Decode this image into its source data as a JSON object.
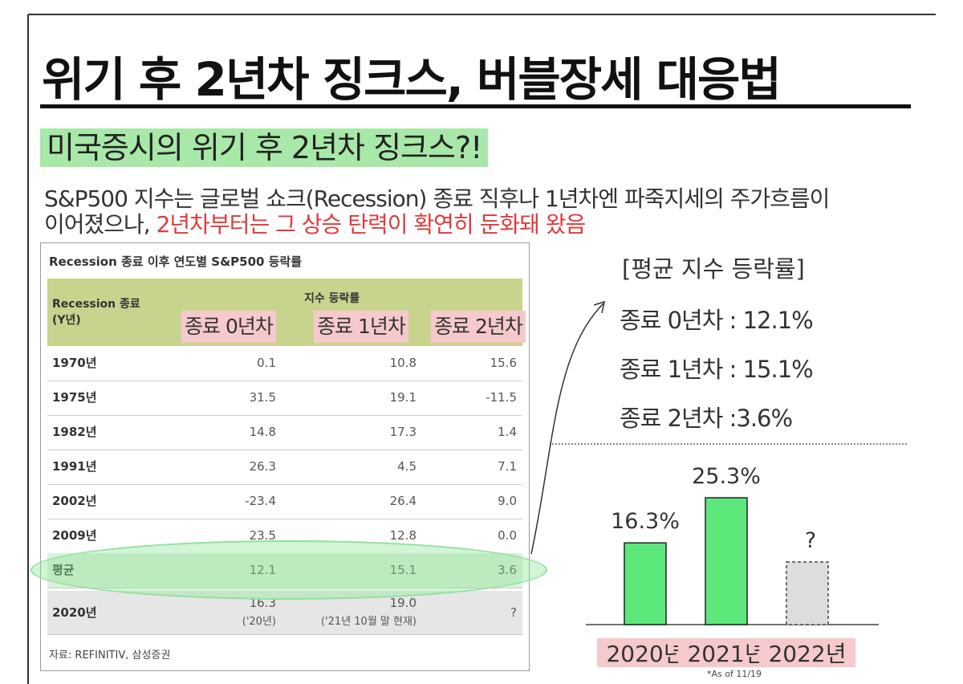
{
  "header": {
    "title": "위기 후 2년차 징크스, 버블장세 대응법",
    "subtitle": "미국증시의 위기 후 2년차 징크스?!",
    "description": [
      "S&P500 지수는 글로벌 쇼크(Recession) 종료 직후나 1년차엔 파죽지세의 주가흐름이",
      "이어졌으나,",
      "2년차부터는 그 상승 탄력이 확연히 둔화돼 왔음"
    ]
  },
  "table": {
    "title": "Recession 종료 이후 연도별 S&P500 등락률",
    "header": {
      "year": "Recession 종료 (Y년)",
      "group": "지수 등락률",
      "columns": [
        "종료 0년차",
        "종료 1년차",
        "종료 2년차"
      ]
    },
    "rows": [
      {
        "year": "1970년",
        "values": [
          "0.1",
          "10.8",
          "15.6"
        ]
      },
      {
        "year": "1975년",
        "values": [
          "31.5",
          "19.1",
          "-11.5"
        ]
      },
      {
        "year": "1982년",
        "values": [
          "14.8",
          "17.3",
          "1.4"
        ]
      },
      {
        "year": "1991년",
        "values": [
          "26.3",
          "4.5",
          "7.1"
        ]
      },
      {
        "year": "2002년",
        "values": [
          "-23.4",
          "26.4",
          "9.0"
        ]
      },
      {
        "year": "2009년",
        "values": [
          "23.5",
          "12.8",
          "0.0"
        ]
      },
      {
        "year": "평균",
        "values": [
          "12.1",
          "15.1",
          "3.6"
        ]
      },
      {
        "year": "2020년",
        "values": [
          "16.3",
          "19.0",
          "?"
        ],
        "notes": [
          "('20년)",
          "('21년 10월 말 현재)"
        ]
      }
    ],
    "source": "자료: REFINITIV, 삼성증권"
  },
  "summary": {
    "heading": "[평균 지수 등락률]",
    "items": [
      "종료 0년차 : 12.1%",
      "종료 1년차 : 15.1%",
      "종료 2년차 :3.6%"
    ]
  },
  "chart_data": {
    "type": "bar",
    "categories": [
      "2020년",
      "2021년",
      "2022년"
    ],
    "values": [
      16.3,
      25.3,
      null
    ],
    "value_labels": [
      "16.3%",
      "25.3%",
      "?"
    ],
    "color": "#5de87c",
    "note": "*As of 11/19"
  }
}
